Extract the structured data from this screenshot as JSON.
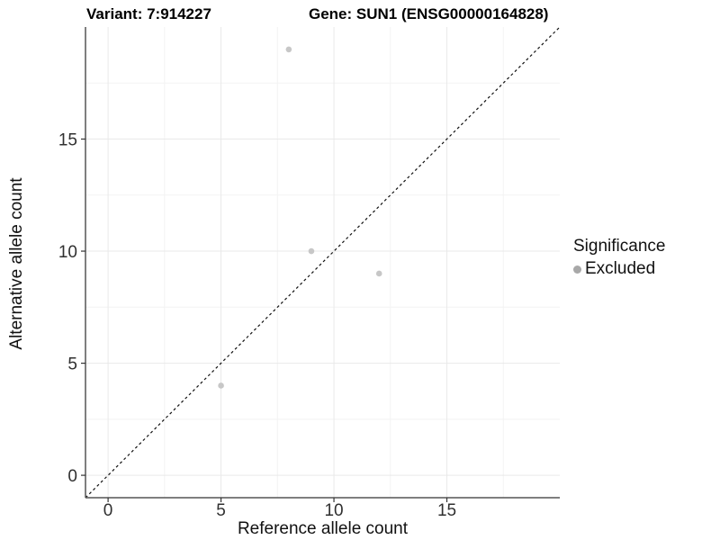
{
  "titles": {
    "variant": "Variant: 7:914227",
    "gene": "Gene: SUN1 (ENSG00000164828)"
  },
  "chart_data": {
    "type": "scatter",
    "title": "Variant: 7:914227   Gene: SUN1 (ENSG00000164828)",
    "xlabel": "Reference allele count",
    "ylabel": "Alternative allele count",
    "xlim": [
      -1,
      20
    ],
    "ylim": [
      -1,
      20
    ],
    "xticks": [
      0,
      5,
      10,
      15
    ],
    "yticks": [
      0,
      5,
      10,
      15
    ],
    "xticks_minor": [
      2.5,
      7.5,
      12.5,
      17.5
    ],
    "yticks_minor": [
      2.5,
      7.5,
      12.5,
      17.5
    ],
    "grid": true,
    "identity_line": {
      "slope": 1,
      "intercept": 0,
      "style": "dashed"
    },
    "series": [
      {
        "name": "Excluded",
        "points": [
          {
            "x": 5,
            "y": 4
          },
          {
            "x": 8,
            "y": 19
          },
          {
            "x": 9,
            "y": 10
          },
          {
            "x": 12,
            "y": 9
          }
        ]
      }
    ],
    "legend": {
      "title": "Significance",
      "position": "right",
      "items": [
        {
          "label": "Excluded",
          "color": "#a8a8a8"
        }
      ]
    },
    "colors": {
      "point": "#c7c7c7",
      "legend_key": "#a8a8a8",
      "grid_major": "#e9e9e9",
      "grid_minor": "#f3f3f3",
      "axis_line": "#555555",
      "tick_mark": "#333333",
      "tick_label": "#303030",
      "identity_line": "#111111",
      "background": "#ffffff"
    }
  }
}
